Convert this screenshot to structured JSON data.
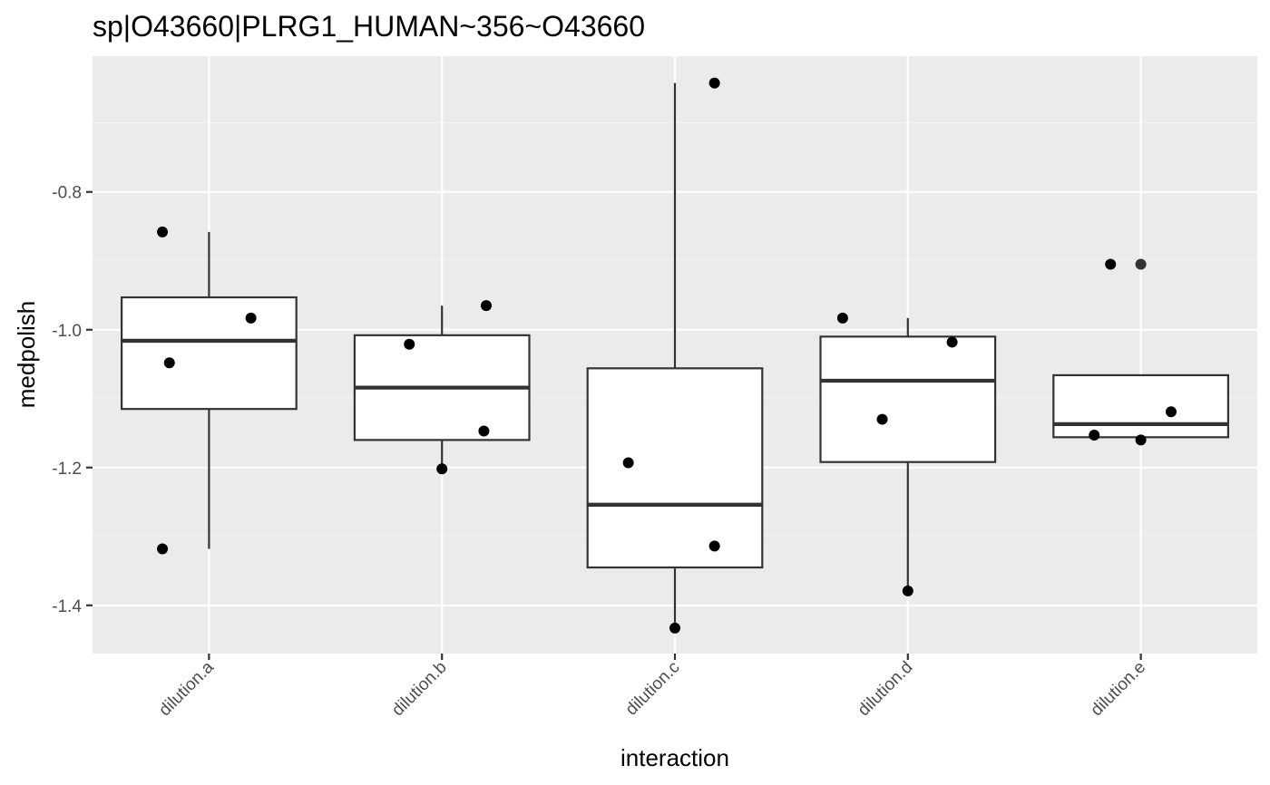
{
  "chart_data": {
    "type": "box",
    "title": "sp|O43660|PLRG1_HUMAN~356~O43660",
    "xlabel": "interaction",
    "ylabel": "medpolish",
    "categories": [
      "dilution.a",
      "dilution.b",
      "dilution.c",
      "dilution.d",
      "dilution.e"
    ],
    "y_ticks": [
      -1.4,
      -1.2,
      -1.0,
      -0.8
    ],
    "y_tick_labels": [
      "-1.4",
      "-1.2",
      "-1.0",
      "-0.8"
    ],
    "ylim": [
      -1.47,
      -0.603
    ],
    "grid": true,
    "legend": "none",
    "boxes": [
      {
        "category": "dilution.a",
        "lower_whisker": -1.318,
        "q1": -1.115,
        "median": -1.016,
        "q3": -0.953,
        "upper_whisker": -0.858
      },
      {
        "category": "dilution.b",
        "lower_whisker": -1.202,
        "q1": -1.16,
        "median": -1.084,
        "q3": -1.008,
        "upper_whisker": -0.965
      },
      {
        "category": "dilution.c",
        "lower_whisker": -1.433,
        "q1": -1.345,
        "median": -1.254,
        "q3": -1.056,
        "upper_whisker": -0.642
      },
      {
        "category": "dilution.d",
        "lower_whisker": -1.379,
        "q1": -1.192,
        "median": -1.074,
        "q3": -1.01,
        "upper_whisker": -0.983
      },
      {
        "category": "dilution.e",
        "lower_whisker": -1.16,
        "q1": -1.156,
        "median": -1.137,
        "q3": -1.066,
        "upper_whisker": -1.066
      }
    ],
    "points": [
      {
        "category": "dilution.a",
        "y": -0.858
      },
      {
        "category": "dilution.a",
        "y": -1.048
      },
      {
        "category": "dilution.a",
        "y": -0.983
      },
      {
        "category": "dilution.a",
        "y": -1.318
      },
      {
        "category": "dilution.b",
        "y": -0.965
      },
      {
        "category": "dilution.b",
        "y": -1.021
      },
      {
        "category": "dilution.b",
        "y": -1.147
      },
      {
        "category": "dilution.b",
        "y": -1.202
      },
      {
        "category": "dilution.c",
        "y": -0.642
      },
      {
        "category": "dilution.c",
        "y": -1.193
      },
      {
        "category": "dilution.c",
        "y": -1.314
      },
      {
        "category": "dilution.c",
        "y": -1.433
      },
      {
        "category": "dilution.d",
        "y": -0.983
      },
      {
        "category": "dilution.d",
        "y": -1.018
      },
      {
        "category": "dilution.d",
        "y": -1.13
      },
      {
        "category": "dilution.d",
        "y": -1.379
      },
      {
        "category": "dilution.e",
        "y": -0.905
      },
      {
        "category": "dilution.e",
        "y": -1.119
      },
      {
        "category": "dilution.e",
        "y": -1.153
      },
      {
        "category": "dilution.e",
        "y": -1.16
      }
    ],
    "outliers": [
      {
        "category": "dilution.e",
        "y": -0.905
      }
    ],
    "colors": {
      "panel_background": "#ebebeb",
      "grid_major": "#ffffff",
      "grid_minor": "#f5f5f5",
      "box_fill": "#ffffff",
      "box_line": "#333333",
      "point": "#000000",
      "outlier": "#333333",
      "tick_text": "#4d4d4d",
      "text": "#000000"
    }
  }
}
